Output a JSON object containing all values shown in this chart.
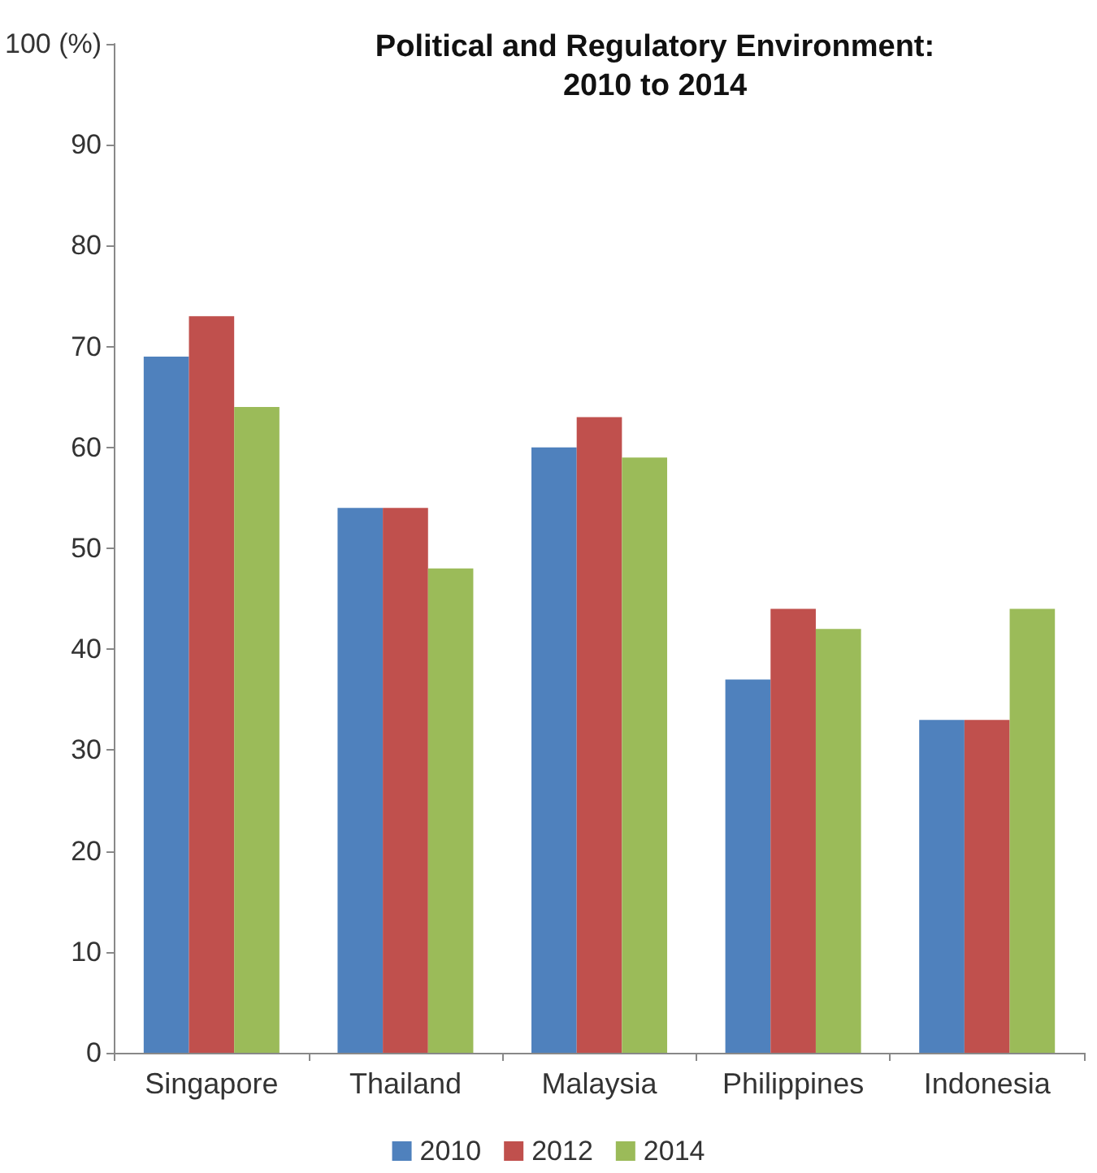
{
  "chart_data": {
    "type": "bar",
    "title": "Political and Regulatory Environment:\n2010 to 2014",
    "categories": [
      "Singapore",
      "Thailand",
      "Malaysia",
      "Philippines",
      "Indonesia"
    ],
    "series": [
      {
        "name": "2010",
        "color": "#4f81bd",
        "values": [
          69,
          54,
          60,
          37,
          33
        ]
      },
      {
        "name": "2012",
        "color": "#c0504d",
        "values": [
          73,
          54,
          63,
          44,
          33
        ]
      },
      {
        "name": "2014",
        "color": "#9bbb59",
        "values": [
          64,
          48,
          59,
          42,
          44
        ]
      }
    ],
    "ylim": [
      0,
      100
    ],
    "yticks": [
      0,
      10,
      20,
      30,
      40,
      50,
      60,
      70,
      80,
      90,
      {
        "value": 100,
        "label": "100 (%)"
      }
    ],
    "grid": false,
    "legend": "bottom"
  }
}
